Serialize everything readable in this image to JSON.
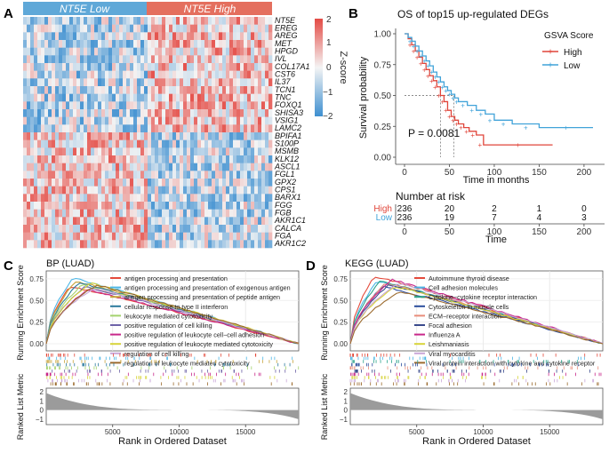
{
  "panels": {
    "A": {
      "label": "A",
      "group_low": "NT5E Low",
      "group_high": "NT5E High",
      "group_low_color": "#5fa8d8",
      "group_high_color": "#e46f5e",
      "genes": [
        "NT5E",
        "EREG",
        "AREG",
        "MET",
        "HPGD",
        "IVL",
        "COL17A1",
        "CST6",
        "IL37",
        "TCN1",
        "TNC",
        "FOXQ1",
        "SHISA3",
        "VSIG1",
        "LAMC2",
        "BPIFA1",
        "S100P",
        "MSMB",
        "KLK12",
        "ASCL1",
        "FGL1",
        "GPX2",
        "CPS1",
        "BARX1",
        "FGG",
        "FGB",
        "AKR1C1",
        "CALCA",
        "FGA",
        "AKR1C2"
      ],
      "up_gene_count": 15,
      "colorbar": {
        "title": "Z-score",
        "ticks": [
          "2",
          "1",
          "0",
          "−1",
          "−2"
        ],
        "low_color": "#3d8fd0",
        "high_color": "#e44b45"
      }
    },
    "B": {
      "label": "B",
      "title": "OS of top15 up-regulated DEGs",
      "legend_title": "GSVA Score",
      "pvalue": "P = 0.0081",
      "risk_title": "Number at risk",
      "risk_rows": [
        {
          "group": "High",
          "counts": [
            "236",
            "20",
            "2",
            "1",
            "0"
          ],
          "color": "#e0453a"
        },
        {
          "group": "Low",
          "counts": [
            "236",
            "19",
            "7",
            "4",
            "3"
          ],
          "color": "#41a3d9"
        }
      ],
      "risk_xlabel": "Time",
      "chart_data": {
        "type": "line",
        "title": "OS of top15 up-regulated DEGs",
        "xlabel": "Time in months",
        "ylabel": "Survival probability",
        "xlim": [
          0,
          210
        ],
        "ylim": [
          0,
          1
        ],
        "xticks": [
          "0",
          "50",
          "100",
          "150",
          "200"
        ],
        "yticks": [
          "0.00",
          "0.25",
          "0.50",
          "0.75",
          "1.00"
        ],
        "median_survival": {
          "High": 40,
          "Low": 55
        },
        "series": [
          {
            "name": "High",
            "color": "#e0453a",
            "x": [
              0,
              4,
              8,
              12,
              16,
              20,
              24,
              28,
              32,
              36,
              40,
              44,
              48,
              52,
              56,
              60,
              66,
              72,
              80,
              88,
              165
            ],
            "y": [
              1.0,
              0.96,
              0.91,
              0.86,
              0.81,
              0.76,
              0.71,
              0.66,
              0.62,
              0.57,
              0.5,
              0.45,
              0.38,
              0.33,
              0.3,
              0.27,
              0.24,
              0.21,
              0.18,
              0.1,
              0.1
            ]
          },
          {
            "name": "Low",
            "color": "#41a3d9",
            "x": [
              0,
              4,
              8,
              12,
              16,
              20,
              24,
              28,
              32,
              36,
              40,
              44,
              48,
              52,
              56,
              60,
              70,
              80,
              90,
              100,
              120,
              150,
              210
            ],
            "y": [
              1.0,
              0.97,
              0.94,
              0.9,
              0.86,
              0.82,
              0.78,
              0.74,
              0.69,
              0.65,
              0.61,
              0.57,
              0.54,
              0.51,
              0.48,
              0.45,
              0.42,
              0.38,
              0.35,
              0.3,
              0.27,
              0.24,
              0.24
            ]
          }
        ]
      }
    },
    "C": {
      "label": "C",
      "title": "BP (LUAD)",
      "ylabel_top": "Running Enrichment Score",
      "ylabel_bottom": "Ranked List Metric",
      "xlabel": "Rank in Ordered Dataset",
      "terms": [
        {
          "name": "antigen processing and presentation",
          "color": "#e44a3b"
        },
        {
          "name": "antigen processing and presentation of exogenous antigen",
          "color": "#4bb5e5"
        },
        {
          "name": "antigen processing and presentation of peptide antigen",
          "color": "#c7a33a"
        },
        {
          "name": "cellular response to type II interferon",
          "color": "#2b7a9c"
        },
        {
          "name": "leukocyte mediated cytotoxicity",
          "color": "#a4d26e"
        },
        {
          "name": "positive regulation of cell killing",
          "color": "#6e63a8"
        },
        {
          "name": "positive regulation of leukocyte cell−cell adhesion",
          "color": "#c8288a"
        },
        {
          "name": "positive regulation of leukocyte mediated cytotoxicity",
          "color": "#d7d43a"
        },
        {
          "name": "regulation of cell killing",
          "color": "#c9a7d8"
        },
        {
          "name": "regulation of leukocyte mediated cytotoxicity",
          "color": "#9c6b2e"
        }
      ],
      "chart_data": {
        "type": "line",
        "title": "BP (LUAD)",
        "xlabel": "Rank in Ordered Dataset",
        "ylabel": "Running Enrichment Score",
        "ylim": [
          0,
          0.8
        ],
        "xlim": [
          0,
          19000
        ],
        "yticks": [
          "0.00",
          "0.25",
          "0.50",
          "0.75"
        ],
        "xticks": [
          "5000",
          "10000",
          "15000"
        ],
        "peak_scores": [
          0.66,
          0.76,
          0.72,
          0.7,
          0.68,
          0.66,
          0.62,
          0.7,
          0.64,
          0.68
        ],
        "metric_ticks": [
          "2",
          "1",
          "0",
          "−1"
        ]
      }
    },
    "D": {
      "label": "D",
      "title": "KEGG (LUAD)",
      "ylabel_top": "Running Enrichment Score",
      "ylabel_bottom": "Ranked List Metric",
      "xlabel": "Rank in Ordered Dataset",
      "terms": [
        {
          "name": "Autoimmune thyroid disease",
          "color": "#e44a3b"
        },
        {
          "name": "Cell adhesion molecules",
          "color": "#4bb5e5"
        },
        {
          "name": "Cytokine−cytokine receptor interaction",
          "color": "#2aa38a"
        },
        {
          "name": "Cytoskeleton in muscle cells",
          "color": "#2b4d9c"
        },
        {
          "name": "ECM−receptor interaction",
          "color": "#e98d7a"
        },
        {
          "name": "Focal adhesion",
          "color": "#3a4a8c"
        },
        {
          "name": "Influenza A",
          "color": "#c8288a"
        },
        {
          "name": "Leishmaniasis",
          "color": "#d7d43a"
        },
        {
          "name": "Viral myocarditis",
          "color": "#c9a7d8"
        },
        {
          "name": "Viral protein interaction with cytokine and cytokine receptor",
          "color": "#9c6b2e"
        }
      ],
      "chart_data": {
        "type": "line",
        "title": "KEGG (LUAD)",
        "xlabel": "Rank in Ordered Dataset",
        "ylabel": "Running Enrichment Score",
        "ylim": [
          0,
          0.8
        ],
        "xlim": [
          0,
          19000
        ],
        "yticks": [
          "0.00",
          "0.25",
          "0.50",
          "0.75"
        ],
        "xticks": [
          "5000",
          "10000",
          "15000"
        ],
        "peak_scores": [
          0.78,
          0.72,
          0.72,
          0.66,
          0.7,
          0.68,
          0.74,
          0.66,
          0.7,
          0.6
        ],
        "metric_ticks": [
          "2",
          "1",
          "0",
          "−1"
        ]
      }
    }
  }
}
